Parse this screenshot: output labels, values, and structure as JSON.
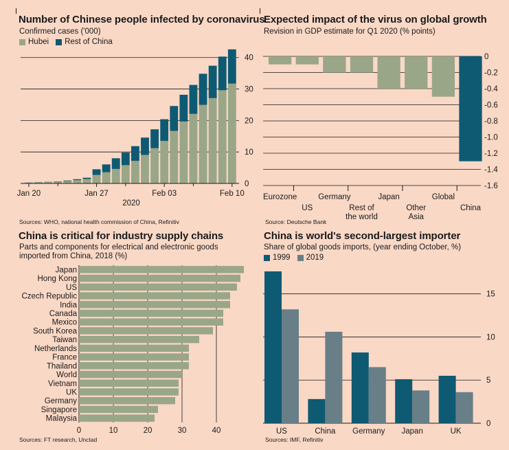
{
  "colors": {
    "background": "#f9d8c6",
    "gray": "#9aa688",
    "teal": "#0e5a73",
    "slate": "#687f87"
  },
  "chart_data": [
    {
      "id": "infections",
      "type": "bar",
      "stacked": true,
      "title": "Number of Chinese people infected by coronavirus",
      "subtitle": "Confirmed cases ('000)",
      "source": "Sources: WHO, national health commission of China, Refinitiv",
      "x": [
        "Jan 20",
        "Jan 21",
        "Jan 22",
        "Jan 23",
        "Jan 24",
        "Jan 25",
        "Jan 26",
        "Jan 27",
        "Jan 28",
        "Jan 29",
        "Jan 30",
        "Jan 31",
        "Feb 01",
        "Feb 02",
        "Feb 03",
        "Feb 04",
        "Feb 05",
        "Feb 06",
        "Feb 07",
        "Feb 08",
        "Feb 09",
        "Feb 10"
      ],
      "x_tick_labels": [
        "Jan 20",
        "Jan 27",
        "Feb 03",
        "Feb 10"
      ],
      "x_year_label": "2020",
      "series": [
        {
          "name": "Hubei",
          "color": "#9aa688",
          "values": [
            0.27,
            0.38,
            0.44,
            0.55,
            0.73,
            1.05,
            1.42,
            2.7,
            3.55,
            4.6,
            5.8,
            7.15,
            9.07,
            11.2,
            13.5,
            16.7,
            19.67,
            22.1,
            24.95,
            27.1,
            29.6,
            31.7
          ]
        },
        {
          "name": "Rest of China",
          "color": "#0e5a73",
          "values": [
            0.05,
            0.06,
            0.07,
            0.1,
            0.2,
            0.3,
            0.4,
            1.8,
            2.5,
            3.4,
            4.0,
            4.7,
            5.5,
            6.0,
            6.9,
            7.9,
            8.5,
            9.2,
            9.9,
            10.3,
            10.7,
            10.9
          ]
        }
      ],
      "ylim": [
        0,
        43
      ],
      "y_ticks": [
        0,
        10,
        20,
        30,
        40
      ],
      "y_axis_side": "right",
      "grid": true,
      "legend": "top-left"
    },
    {
      "id": "gdp",
      "type": "bar",
      "title": "Expected impact of the virus on global growth",
      "subtitle": "Revision in GDP estimate for Q1 2020 (% points)",
      "source": "Source: Deutsche Bank",
      "categories": [
        "Eurozone",
        "US",
        "Germany",
        "Rest of the world",
        "Japan",
        "Other Asia",
        "Global",
        "China"
      ],
      "category_labels": [
        [
          "Eurozone"
        ],
        [
          "US"
        ],
        [
          "Germany"
        ],
        [
          "Rest of",
          "the world"
        ],
        [
          "Japan"
        ],
        [
          "Other",
          "Asia"
        ],
        [
          "Global"
        ],
        [
          "China"
        ]
      ],
      "values": [
        -0.1,
        -0.1,
        -0.2,
        -0.2,
        -0.4,
        -0.4,
        -0.5,
        -1.3
      ],
      "highlight": "China",
      "ylim": [
        -1.6,
        0
      ],
      "y_ticks": [
        0,
        -0.2,
        -0.4,
        -0.6,
        -0.8,
        -1.0,
        -1.2,
        -1.4,
        -1.6
      ],
      "y_tick_labels": [
        "0",
        "-0.2",
        "-0.4",
        "-0.6",
        "-0.8",
        "-1.0",
        "-1.2",
        "-1.4",
        "-1.6"
      ],
      "y_axis_side": "right",
      "grid": true
    },
    {
      "id": "supply",
      "type": "bar",
      "orientation": "horizontal",
      "title": "China is critical for industry supply chains",
      "subtitle_lines": [
        "Parts and components for electrical and electronic goods",
        "imported from China, 2018 (%)"
      ],
      "source": "Sources: FT research, Unctad",
      "categories": [
        "Japan",
        "Hong Kong",
        "US",
        "Czech Republic",
        "India",
        "Canada",
        "Mexico",
        "South Korea",
        "Taiwan",
        "Netherlands",
        "France",
        "Thailand",
        "World",
        "Vietnam",
        "UK",
        "Germany",
        "Singapore",
        "Malaysia"
      ],
      "values": [
        48,
        47,
        46,
        44,
        44,
        42,
        42,
        39,
        35,
        32,
        32,
        32,
        30,
        29,
        29,
        28,
        23,
        22
      ],
      "xlim": [
        0,
        50
      ],
      "x_ticks": [
        0,
        10,
        20,
        30,
        40
      ],
      "grid": true
    },
    {
      "id": "importer",
      "type": "bar",
      "title": "China is world's second-largest importer",
      "subtitle": "Share of global goods imports, (year ending October, %)",
      "source": "Sources: IMF, Refinitiv",
      "categories": [
        "US",
        "China",
        "Germany",
        "Japan",
        "UK"
      ],
      "series": [
        {
          "name": "1999",
          "color": "#0e5a73",
          "values": [
            17.6,
            2.8,
            8.2,
            5.1,
            5.5
          ]
        },
        {
          "name": "2019",
          "color": "#687f87",
          "values": [
            13.2,
            10.6,
            6.5,
            3.8,
            3.6
          ]
        }
      ],
      "ylim": [
        0,
        18
      ],
      "y_ticks": [
        0,
        5,
        10,
        15
      ],
      "y_axis_side": "right",
      "grid": true,
      "legend": "top-left"
    }
  ]
}
